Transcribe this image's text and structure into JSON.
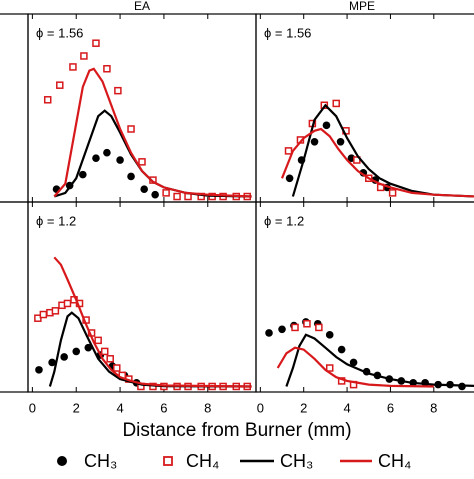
{
  "chart_data": [
    {
      "type": "line",
      "title": "EA",
      "annotation": "ϕ = 1.56",
      "xlim": [
        -0.2,
        10.2
      ],
      "ylim": [
        -0.03,
        1
      ],
      "xticks": [
        0,
        2,
        4,
        6,
        8
      ],
      "series": [
        {
          "name": "CH₃",
          "color": "#000000",
          "style": "points",
          "marker": "circle",
          "x": [
            1.1,
            1.7,
            2.3,
            2.9,
            3.4,
            4.0,
            4.5,
            5.1,
            5.6
          ],
          "values": [
            0.04,
            0.06,
            0.12,
            0.21,
            0.24,
            0.2,
            0.11,
            0.04,
            0.01
          ]
        },
        {
          "name": "CH₄",
          "color": "#d7191c",
          "style": "points",
          "marker": "square",
          "x": [
            0.7,
            1.25,
            1.85,
            2.35,
            2.9,
            3.4,
            3.9,
            4.5,
            5.0,
            5.5,
            6.1,
            6.6,
            7.1,
            7.7,
            8.2,
            8.7,
            9.3,
            9.8
          ],
          "values": [
            0.53,
            0.61,
            0.71,
            0.77,
            0.84,
            0.7,
            0.58,
            0.37,
            0.19,
            0.09,
            0.02,
            0,
            0,
            0,
            0,
            0,
            0,
            0
          ]
        },
        {
          "name": "CH₃",
          "color": "#000000",
          "style": "line",
          "x": [
            1.0,
            1.5,
            2.0,
            2.5,
            3.0,
            3.3,
            3.6,
            4.0,
            4.5,
            5.0,
            5.5,
            6.0,
            7,
            8,
            10
          ],
          "values": [
            0,
            0.02,
            0.1,
            0.27,
            0.44,
            0.47,
            0.44,
            0.35,
            0.23,
            0.14,
            0.08,
            0.05,
            0.02,
            0.005,
            0
          ]
        },
        {
          "name": "CH₄",
          "color": "#d7191c",
          "style": "line",
          "x": [
            1.0,
            1.5,
            2.0,
            2.3,
            2.6,
            2.8,
            3.2,
            3.6,
            4.0,
            4.5,
            5.0,
            5.5,
            6,
            7,
            8,
            10
          ],
          "values": [
            0,
            0.07,
            0.4,
            0.6,
            0.69,
            0.7,
            0.63,
            0.5,
            0.37,
            0.24,
            0.14,
            0.08,
            0.05,
            0.02,
            0.01,
            0
          ]
        }
      ]
    },
    {
      "type": "line",
      "title": "MPE",
      "annotation": "ϕ = 1.56",
      "xlim": [
        -0.2,
        9.9
      ],
      "ylim": [
        -0.03,
        1
      ],
      "xticks": [
        0,
        2,
        4,
        6,
        8
      ],
      "series": [
        {
          "name": "CH₃",
          "color": "#000000",
          "style": "points",
          "marker": "circle",
          "x": [
            1.35,
            1.9,
            2.5,
            3.05,
            3.7,
            4.2,
            4.75,
            5.3,
            5.85
          ],
          "values": [
            0.1,
            0.2,
            0.3,
            0.39,
            0.3,
            0.21,
            0.13,
            0.09,
            0.05
          ]
        },
        {
          "name": "CH₄",
          "color": "#d7191c",
          "style": "points",
          "marker": "square",
          "x": [
            1.3,
            1.85,
            2.4,
            2.95,
            3.5,
            3.95,
            4.45,
            5.0,
            5.55,
            6.1
          ],
          "values": [
            0.25,
            0.31,
            0.4,
            0.5,
            0.51,
            0.36,
            0.2,
            0.1,
            0.05,
            0.02
          ]
        },
        {
          "name": "CH₃",
          "color": "#000000",
          "style": "line",
          "x": [
            1.5,
            2.0,
            2.5,
            3.0,
            3.5,
            4.0,
            4.5,
            5.0,
            5.5,
            6,
            7,
            8,
            9.9
          ],
          "values": [
            0,
            0.2,
            0.42,
            0.5,
            0.44,
            0.32,
            0.22,
            0.15,
            0.1,
            0.07,
            0.03,
            0.01,
            0
          ]
        },
        {
          "name": "CH₄",
          "color": "#d7191c",
          "style": "line",
          "x": [
            1.0,
            1.5,
            2.0,
            2.5,
            2.8,
            3.2,
            3.6,
            4.0,
            4.5,
            5.0,
            5.5,
            6,
            7,
            8,
            9.9
          ],
          "values": [
            0.1,
            0.25,
            0.32,
            0.36,
            0.37,
            0.33,
            0.26,
            0.2,
            0.14,
            0.1,
            0.07,
            0.05,
            0.02,
            0.01,
            0
          ]
        }
      ]
    },
    {
      "type": "line",
      "annotation": "ϕ = 1.2",
      "x_label": "Distance from Burner (mm)",
      "xlim": [
        -0.2,
        10.2
      ],
      "ylim": [
        -0.03,
        1
      ],
      "xticks": [
        0,
        2,
        4,
        6,
        8
      ],
      "series": [
        {
          "name": "CH₃",
          "color": "#000000",
          "style": "points",
          "marker": "circle",
          "x": [
            0.3,
            0.9,
            1.45,
            2.0,
            2.55,
            3.1,
            3.65,
            4.2,
            4.75
          ],
          "values": [
            0.09,
            0.13,
            0.16,
            0.19,
            0.21,
            0.17,
            0.11,
            0.06,
            0.02
          ]
        },
        {
          "name": "CH₄",
          "color": "#d7191c",
          "style": "points",
          "marker": "square",
          "x": [
            0.25,
            0.5,
            0.8,
            1.05,
            1.35,
            1.6,
            1.9,
            2.15,
            2.45,
            2.7,
            3.0,
            3.3,
            3.55,
            3.85,
            4.1,
            4.4,
            4.95,
            5.5,
            6.0,
            6.6,
            7.1,
            7.7,
            8.2,
            8.7,
            9.3,
            9.8
          ],
          "values": [
            0.37,
            0.39,
            0.4,
            0.41,
            0.44,
            0.45,
            0.47,
            0.45,
            0.36,
            0.29,
            0.25,
            0.19,
            0.15,
            0.1,
            0.06,
            0.04,
            0,
            0,
            0,
            0,
            0,
            0,
            0,
            0,
            0,
            0
          ]
        },
        {
          "name": "CH₃",
          "color": "#000000",
          "style": "line",
          "x": [
            0.8,
            1.0,
            1.3,
            1.6,
            1.8,
            2.1,
            2.5,
            3.0,
            3.5,
            4,
            5,
            6,
            10
          ],
          "values": [
            0,
            0.08,
            0.25,
            0.38,
            0.4,
            0.37,
            0.27,
            0.15,
            0.08,
            0.04,
            0.01,
            0.002,
            0
          ]
        },
        {
          "name": "CH₄",
          "color": "#d7191c",
          "style": "line",
          "x": [
            1.0,
            1.3,
            1.6,
            2.0,
            2.4,
            2.8,
            3.2,
            3.6,
            4,
            4.5,
            5,
            6,
            10
          ],
          "values": [
            0.7,
            0.66,
            0.58,
            0.47,
            0.35,
            0.24,
            0.15,
            0.09,
            0.05,
            0.03,
            0.015,
            0.005,
            0
          ]
        }
      ]
    },
    {
      "type": "line",
      "annotation": "ϕ = 1.2",
      "xlim": [
        -0.2,
        9.9
      ],
      "ylim": [
        -0.03,
        1
      ],
      "xticks": [
        0,
        2,
        4,
        6,
        8
      ],
      "series": [
        {
          "name": "CH₃",
          "color": "#000000",
          "style": "points",
          "marker": "circle",
          "x": [
            0.4,
            1.0,
            1.55,
            2.1,
            2.65,
            3.2,
            3.75,
            4.3,
            4.9,
            5.4,
            5.95,
            6.5,
            7.05,
            7.6,
            8.2,
            8.75,
            9.3
          ],
          "values": [
            0.29,
            0.31,
            0.33,
            0.35,
            0.34,
            0.28,
            0.2,
            0.13,
            0.08,
            0.06,
            0.04,
            0.03,
            0.02,
            0.02,
            0.01,
            0.01,
            0
          ]
        },
        {
          "name": "CH₄",
          "color": "#d7191c",
          "style": "points",
          "marker": "square",
          "x": [
            1.6,
            2.15,
            2.7,
            3.2,
            3.75,
            4.3
          ],
          "values": [
            0.32,
            0.34,
            0.32,
            0.1,
            0.03,
            0.01
          ]
        },
        {
          "name": "CH₃",
          "color": "#000000",
          "style": "line",
          "x": [
            1.2,
            1.5,
            1.8,
            2.1,
            2.5,
            3.0,
            3.5,
            4.0,
            5.0,
            6,
            7,
            8,
            9.9
          ],
          "values": [
            0,
            0.1,
            0.22,
            0.28,
            0.26,
            0.21,
            0.16,
            0.12,
            0.07,
            0.04,
            0.02,
            0.01,
            0.003
          ]
        },
        {
          "name": "CH₄",
          "color": "#d7191c",
          "style": "line",
          "x": [
            0.8,
            1.2,
            1.6,
            2.0,
            2.5,
            3.0,
            3.5,
            4,
            5,
            6,
            8
          ],
          "values": [
            0.1,
            0.18,
            0.21,
            0.2,
            0.15,
            0.09,
            0.05,
            0.03,
            0.01,
            0.003,
            0
          ]
        }
      ]
    }
  ]
}
